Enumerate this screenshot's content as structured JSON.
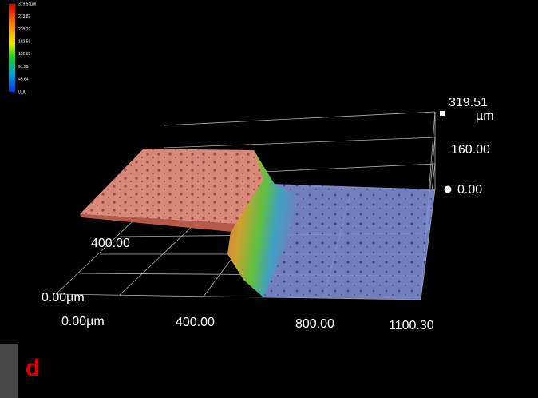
{
  "color_scale": {
    "labels": [
      "319.51µm",
      "273.87",
      "228.22",
      "182.58",
      "136.93",
      "91.29",
      "45.64",
      "0.00"
    ]
  },
  "z_axis": {
    "max": "319.51",
    "unit": "µm",
    "mid": "160.00",
    "zero": "0.00"
  },
  "y_axis": {
    "tick": "400.00",
    "origin": "0.00µm"
  },
  "x_axis": {
    "origin": "0.00µm",
    "ticks": [
      "400.00",
      "800.00",
      "1100.30"
    ]
  },
  "panel_label": "d"
}
